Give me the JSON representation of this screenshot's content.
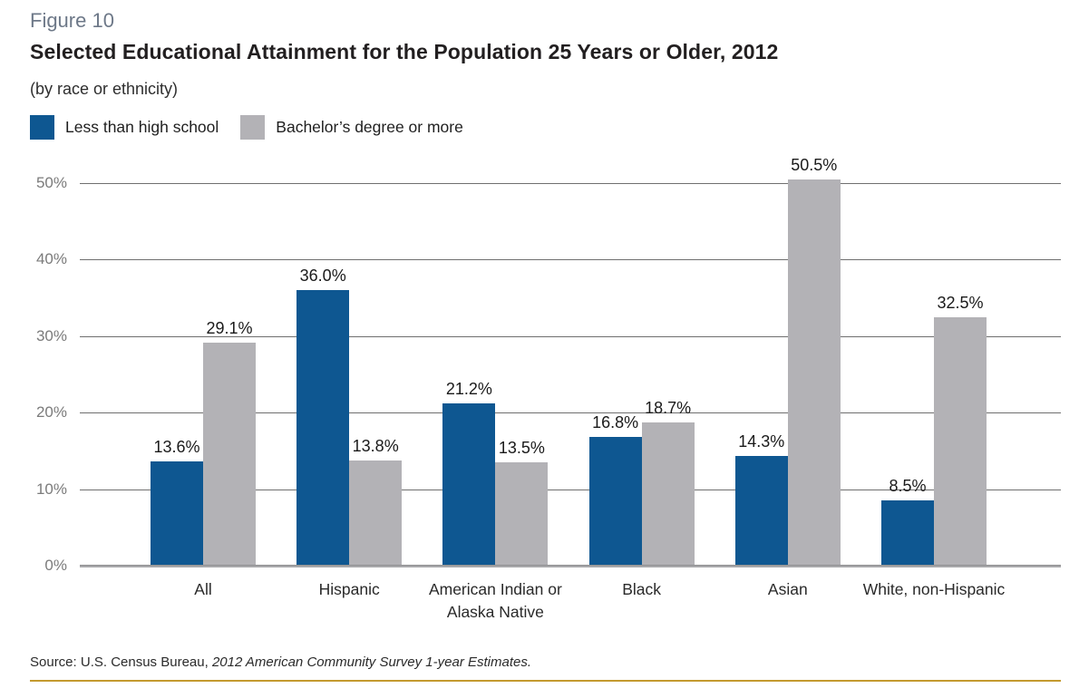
{
  "header": {
    "figure_label": "Figure 10",
    "title": "Selected Educational Attainment for the Population 25 Years or Older, 2012",
    "subtitle": "(by race or ethnicity)"
  },
  "legend": {
    "items": [
      {
        "label": "Less than high school",
        "color": "#0e5791"
      },
      {
        "label": "Bachelor’s degree or more",
        "color": "#b3b2b6"
      }
    ]
  },
  "chart_data": {
    "type": "bar",
    "categories": [
      "All",
      "Hispanic",
      "American Indian or Alaska Native",
      "Black",
      "Asian",
      "White, non-Hispanic"
    ],
    "series": [
      {
        "name": "Less than high school",
        "color": "#0e5791",
        "values": [
          13.6,
          36.0,
          21.2,
          16.8,
          14.3,
          8.5
        ]
      },
      {
        "name": "Bachelor's degree or more",
        "color": "#b3b2b6",
        "values": [
          29.1,
          13.8,
          13.5,
          18.7,
          50.5,
          32.5
        ]
      }
    ],
    "data_labels": [
      [
        "13.6%",
        "36.0%",
        "21.2%",
        "16.8%",
        "14.3%",
        "8.5%"
      ],
      [
        "29.1%",
        "13.8%",
        "13.5%",
        "18.7%",
        "50.5%",
        "32.5%"
      ]
    ],
    "value_suffix": "%",
    "ylim": [
      0,
      50
    ],
    "yticks": [
      0,
      10,
      20,
      30,
      40,
      50
    ],
    "ytick_labels": [
      "0%",
      "10%",
      "20%",
      "30%",
      "40%",
      "50%"
    ],
    "grid": true,
    "legend_position": "top-left",
    "xlabel": "",
    "ylabel": ""
  },
  "footer": {
    "source_prefix": "Source: U.S. Census Bureau, ",
    "source_italic": "2012 American Community Survey 1-year Estimates."
  },
  "colors": {
    "bar_blue": "#0e5791",
    "bar_gray": "#b3b2b6",
    "gridline": "#6f6f6f",
    "baseline": "#a8a8aa",
    "gold_rule": "#c49a2f",
    "figure_label": "#6d7888"
  }
}
